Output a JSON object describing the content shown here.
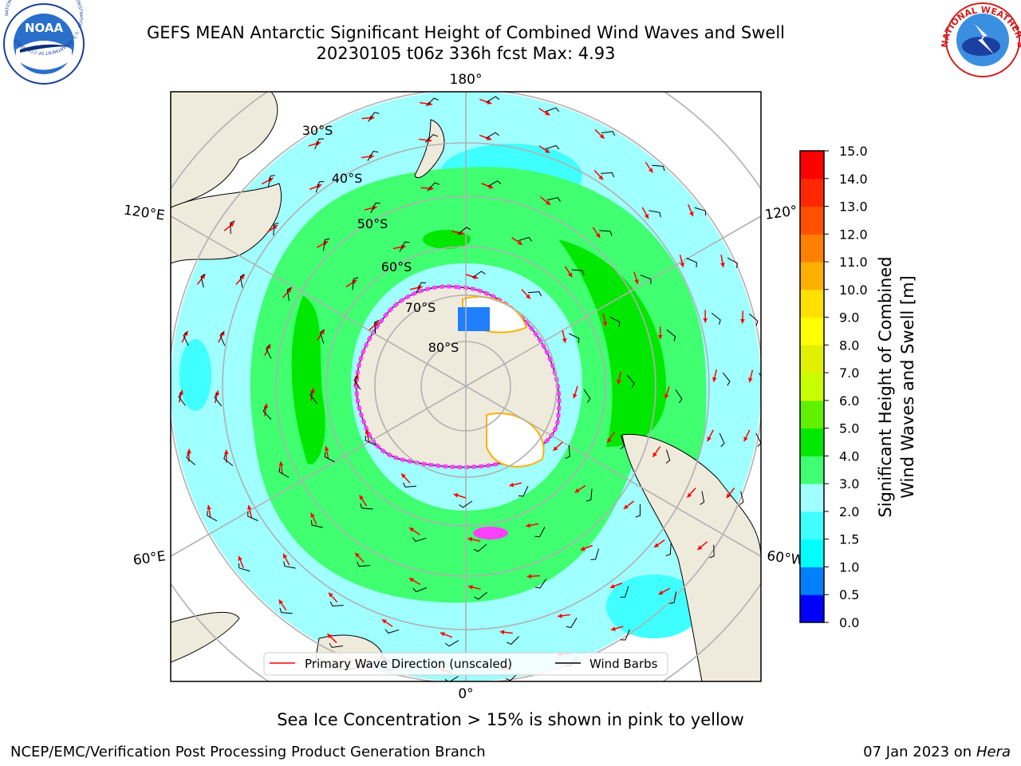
{
  "header": {
    "title_line1": "GEFS MEAN Antarctic Significant Height of Combined Wind Waves and Swell",
    "title_line2": "20230105 t06z 336h fcst   Max: 4.93",
    "noaa_logo_text": "NOAA",
    "noaa_ring_text": "NATIONAL OCEANIC AND ATMOSPHERIC ADMINISTRATION · U.S. DEPARTMENT OF COMMERCE",
    "nws_ring_text": "NATIONAL WEATHER SERVICE"
  },
  "chart_data": {
    "type": "heatmap",
    "projection": "south-polar-stereographic",
    "max_value": 4.93,
    "longitude_labels": {
      "top": "180°",
      "bottom": "0°",
      "upper_left": "120°E",
      "lower_left": "60°E",
      "upper_right": "120°",
      "lower_right": "60°W"
    },
    "latitude_labels": [
      "30°S",
      "40°S",
      "50°S",
      "60°S",
      "70°S",
      "80°S"
    ],
    "colorbar": {
      "label_line1": "Significant Height of Combined",
      "label_line2": "Wind Waves and Swell [m]",
      "ticks": [
        "0.0",
        "0.5",
        "1.0",
        "1.5",
        "2.0",
        "3.0",
        "4.0",
        "5.0",
        "6.0",
        "7.0",
        "8.0",
        "9.0",
        "10.0",
        "11.0",
        "12.0",
        "13.0",
        "14.0",
        "15.0"
      ],
      "bins": [
        {
          "from": 0.0,
          "to": 0.5,
          "color": "#0000ff"
        },
        {
          "from": 0.5,
          "to": 1.0,
          "color": "#0080ff"
        },
        {
          "from": 1.0,
          "to": 1.5,
          "color": "#00ffff"
        },
        {
          "from": 1.5,
          "to": 2.0,
          "color": "#40ffff"
        },
        {
          "from": 2.0,
          "to": 3.0,
          "color": "#a0ffff"
        },
        {
          "from": 3.0,
          "to": 4.0,
          "color": "#40ff70"
        },
        {
          "from": 4.0,
          "to": 5.0,
          "color": "#00e800"
        },
        {
          "from": 5.0,
          "to": 6.0,
          "color": "#60f000"
        },
        {
          "from": 6.0,
          "to": 7.0,
          "color": "#c8ff00"
        },
        {
          "from": 7.0,
          "to": 8.0,
          "color": "#e0f000"
        },
        {
          "from": 8.0,
          "to": 9.0,
          "color": "#ffff00"
        },
        {
          "from": 9.0,
          "to": 10.0,
          "color": "#ffe000"
        },
        {
          "from": 10.0,
          "to": 11.0,
          "color": "#ffb000"
        },
        {
          "from": 11.0,
          "to": 12.0,
          "color": "#ff8000"
        },
        {
          "from": 12.0,
          "to": 13.0,
          "color": "#ff5000"
        },
        {
          "from": 13.0,
          "to": 14.0,
          "color": "#ff2800"
        },
        {
          "from": 14.0,
          "to": 15.0,
          "color": "#ff0000"
        }
      ]
    },
    "legend": {
      "placement": "bottom-center",
      "entries": [
        {
          "label": "Primary Wave Direction (unscaled)",
          "color": "#ff0000"
        },
        {
          "label": "Wind Barbs",
          "color": "#000000"
        }
      ]
    },
    "colors": {
      "land": "#efebdc",
      "ice_white": "#ffffff",
      "ice_pink": "#ff40ff",
      "gridline": "#b0b0b0"
    }
  },
  "sea_ice_note": "Sea Ice Concentration > 15% is shown in pink to yellow",
  "footer": {
    "left": "NCEP/EMC/Verification Post Processing Product Generation Branch",
    "right_date": "07 Jan 2023 on ",
    "right_host": "Hera"
  }
}
